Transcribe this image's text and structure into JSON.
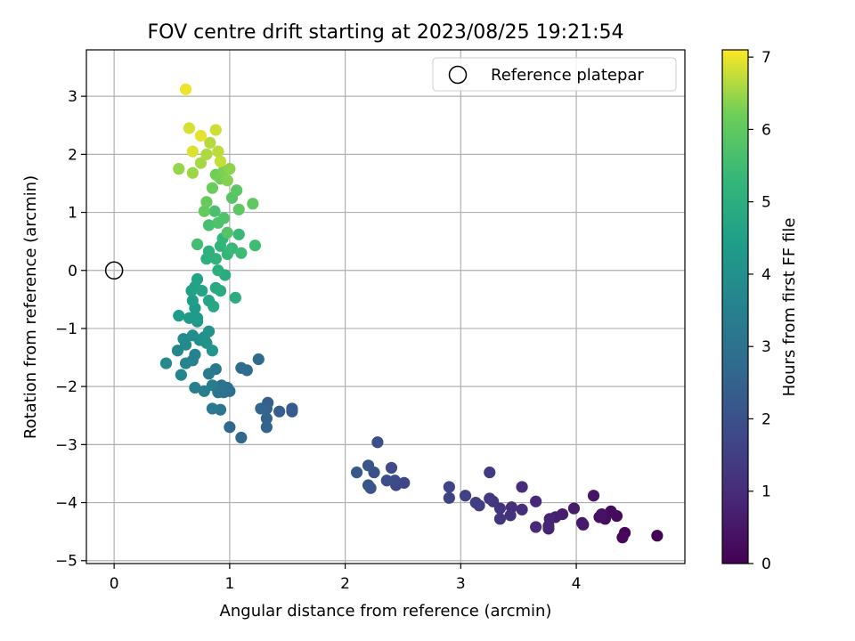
{
  "chart_data": {
    "type": "scatter",
    "title": "FOV centre drift starting at 2023/08/25 19:21:54",
    "xlabel": "Angular distance from reference (arcmin)",
    "ylabel": "Rotation from reference (arcmin)",
    "xlim": [
      -0.24,
      4.94
    ],
    "ylim": [
      -5.05,
      3.8
    ],
    "x_ticks": [
      0,
      1,
      2,
      3,
      4
    ],
    "x_tick_labels": [
      "0",
      "1",
      "2",
      "3",
      "4"
    ],
    "y_ticks": [
      -5,
      -4,
      -3,
      -2,
      -1,
      0,
      1,
      2,
      3
    ],
    "y_tick_labels": [
      "−5",
      "−4",
      "−3",
      "−2",
      "−1",
      "0",
      "1",
      "2",
      "3"
    ],
    "grid": true,
    "legend": {
      "placement": "top-right",
      "entries": [
        "Reference platepar"
      ]
    },
    "reference_point": {
      "x": 0,
      "y": 0
    },
    "colorbar": {
      "label": "Hours from first FF file",
      "range": [
        0,
        7.1
      ],
      "ticks": [
        0,
        1,
        2,
        3,
        4,
        5,
        6,
        7
      ],
      "tick_labels": [
        "0",
        "1",
        "2",
        "3",
        "4",
        "5",
        "6",
        "7"
      ],
      "colormap": "viridis"
    },
    "points": [
      [
        4.7,
        -4.57,
        0.05
      ],
      [
        4.42,
        -4.52,
        0.1
      ],
      [
        4.4,
        -4.6,
        0.15
      ],
      [
        4.35,
        -4.23,
        0.2
      ],
      [
        4.3,
        -4.15,
        0.25
      ],
      [
        4.25,
        -4.28,
        0.3
      ],
      [
        4.2,
        -4.25,
        0.35
      ],
      [
        4.22,
        -4.2,
        0.4
      ],
      [
        4.15,
        -3.88,
        0.45
      ],
      [
        4.05,
        -4.35,
        0.5
      ],
      [
        4.06,
        -4.38,
        0.55
      ],
      [
        3.98,
        -4.1,
        0.6
      ],
      [
        3.88,
        -4.2,
        0.65
      ],
      [
        3.82,
        -4.25,
        0.7
      ],
      [
        3.76,
        -4.45,
        0.75
      ],
      [
        3.77,
        -4.28,
        0.8
      ],
      [
        3.76,
        -4.4,
        0.85
      ],
      [
        3.65,
        -3.98,
        0.9
      ],
      [
        3.65,
        -4.42,
        0.95
      ],
      [
        3.53,
        -3.73,
        1.0
      ],
      [
        3.53,
        -4.12,
        1.05
      ],
      [
        3.44,
        -4.08,
        1.1
      ],
      [
        3.43,
        -4.22,
        1.15
      ],
      [
        3.34,
        -4.1,
        1.2
      ],
      [
        3.34,
        -4.28,
        1.25
      ],
      [
        3.28,
        -3.98,
        1.3
      ],
      [
        3.25,
        -3.93,
        1.35
      ],
      [
        3.25,
        -3.48,
        1.4
      ],
      [
        3.16,
        -4.05,
        1.45
      ],
      [
        3.13,
        -4.0,
        1.5
      ],
      [
        3.04,
        -3.88,
        1.55
      ],
      [
        2.9,
        -3.92,
        1.6
      ],
      [
        2.9,
        -3.73,
        1.65
      ],
      [
        2.51,
        -3.66,
        1.7
      ],
      [
        2.44,
        -3.7,
        1.75
      ],
      [
        2.4,
        -3.4,
        1.8
      ],
      [
        2.43,
        -3.62,
        1.85
      ],
      [
        2.36,
        -3.62,
        1.9
      ],
      [
        2.28,
        -2.96,
        1.95
      ],
      [
        2.25,
        -3.48,
        2.0
      ],
      [
        2.22,
        -3.75,
        2.05
      ],
      [
        2.2,
        -3.7,
        2.1
      ],
      [
        2.2,
        -3.36,
        2.15
      ],
      [
        2.1,
        -3.48,
        2.2
      ],
      [
        1.54,
        -2.43,
        2.25
      ],
      [
        1.54,
        -2.38,
        2.3
      ],
      [
        1.43,
        -2.43,
        2.35
      ],
      [
        1.33,
        -2.28,
        2.4
      ],
      [
        1.32,
        -2.38,
        2.45
      ],
      [
        1.32,
        -2.55,
        2.5
      ],
      [
        1.32,
        -2.7,
        2.55
      ],
      [
        1.27,
        -2.38,
        2.6
      ],
      [
        1.1,
        -2.88,
        2.65
      ],
      [
        1.0,
        -2.7,
        2.7
      ],
      [
        1.25,
        -1.53,
        2.75
      ],
      [
        1.15,
        -1.72,
        2.8
      ],
      [
        1.1,
        -1.68,
        2.85
      ],
      [
        1.0,
        -2.08,
        2.9
      ],
      [
        0.98,
        -2.02,
        2.95
      ],
      [
        0.95,
        -2.1,
        3.0
      ],
      [
        0.93,
        -1.98,
        3.05
      ],
      [
        0.92,
        -2.4,
        3.1
      ],
      [
        0.9,
        -2.1,
        3.15
      ],
      [
        0.88,
        -1.7,
        3.2
      ],
      [
        0.85,
        -2.38,
        3.25
      ],
      [
        0.85,
        -1.98,
        3.3
      ],
      [
        0.82,
        -1.78,
        3.35
      ],
      [
        0.78,
        -2.08,
        3.4
      ],
      [
        0.7,
        -2.02,
        3.45
      ],
      [
        0.68,
        -1.55,
        3.5
      ],
      [
        0.7,
        -1.45,
        3.55
      ],
      [
        0.62,
        -1.6,
        3.6
      ],
      [
        0.58,
        -1.8,
        3.65
      ],
      [
        0.55,
        -1.38,
        3.7
      ],
      [
        0.45,
        -1.6,
        3.75
      ],
      [
        0.6,
        -1.18,
        3.8
      ],
      [
        0.62,
        -1.28,
        3.85
      ],
      [
        0.68,
        -1.12,
        3.9
      ],
      [
        0.74,
        -1.2,
        3.95
      ],
      [
        0.78,
        -1.15,
        4.0
      ],
      [
        0.8,
        -1.25,
        4.05
      ],
      [
        0.82,
        -1.05,
        4.1
      ],
      [
        0.85,
        -1.38,
        4.15
      ],
      [
        0.72,
        -0.88,
        4.2
      ],
      [
        0.7,
        -0.65,
        4.25
      ],
      [
        0.72,
        -0.82,
        4.3
      ],
      [
        0.65,
        -0.82,
        4.35
      ],
      [
        0.56,
        -0.78,
        4.4
      ],
      [
        0.68,
        -0.52,
        4.45
      ],
      [
        0.67,
        -0.35,
        4.5
      ],
      [
        0.7,
        -0.28,
        4.55
      ],
      [
        0.72,
        -0.15,
        4.6
      ],
      [
        0.76,
        -0.35,
        4.65
      ],
      [
        0.82,
        -0.52,
        4.7
      ],
      [
        0.86,
        -0.62,
        4.75
      ],
      [
        0.88,
        -0.3,
        4.8
      ],
      [
        0.92,
        -0.35,
        4.85
      ],
      [
        0.96,
        -0.08,
        4.9
      ],
      [
        1.05,
        -0.47,
        4.95
      ],
      [
        0.9,
        0.0,
        5.0
      ],
      [
        0.8,
        0.2,
        5.05
      ],
      [
        0.82,
        0.33,
        5.1
      ],
      [
        0.88,
        0.2,
        5.15
      ],
      [
        0.92,
        0.42,
        5.2
      ],
      [
        0.94,
        0.55,
        5.25
      ],
      [
        0.98,
        0.28,
        5.3
      ],
      [
        1.02,
        0.38,
        5.35
      ],
      [
        1.08,
        0.62,
        5.4
      ],
      [
        1.1,
        0.3,
        5.45
      ],
      [
        1.22,
        0.43,
        5.5
      ],
      [
        0.72,
        0.45,
        5.55
      ],
      [
        0.82,
        0.78,
        5.6
      ],
      [
        0.87,
        1.02,
        5.65
      ],
      [
        0.9,
        0.82,
        5.7
      ],
      [
        0.95,
        0.9,
        5.75
      ],
      [
        0.98,
        0.65,
        5.8
      ],
      [
        1.02,
        1.25,
        5.85
      ],
      [
        1.06,
        1.38,
        5.9
      ],
      [
        1.08,
        1.05,
        5.95
      ],
      [
        1.2,
        1.15,
        6.0
      ],
      [
        0.78,
        1.02,
        6.05
      ],
      [
        0.8,
        1.18,
        6.1
      ],
      [
        0.85,
        1.42,
        6.15
      ],
      [
        0.88,
        1.65,
        6.2
      ],
      [
        0.92,
        1.58,
        6.25
      ],
      [
        0.95,
        1.72,
        6.3
      ],
      [
        0.98,
        1.55,
        6.35
      ],
      [
        1.0,
        1.75,
        6.4
      ],
      [
        0.56,
        1.75,
        6.45
      ],
      [
        0.68,
        1.68,
        6.5
      ],
      [
        0.75,
        1.85,
        6.55
      ],
      [
        0.8,
        2.0,
        6.6
      ],
      [
        0.83,
        2.2,
        6.65
      ],
      [
        0.9,
        2.05,
        6.7
      ],
      [
        0.92,
        1.88,
        6.75
      ],
      [
        0.88,
        2.42,
        6.8
      ],
      [
        0.65,
        2.45,
        6.85
      ],
      [
        0.68,
        2.05,
        6.9
      ],
      [
        0.75,
        2.32,
        6.95
      ],
      [
        0.62,
        3.12,
        7.0
      ]
    ]
  }
}
